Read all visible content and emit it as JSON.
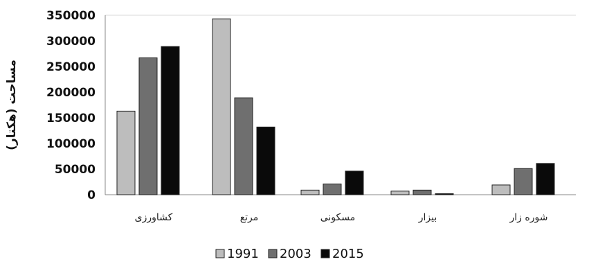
{
  "chart_data": {
    "type": "bar",
    "title": "",
    "xlabel": "",
    "ylabel": "مساحت (هکتار)",
    "ylim": [
      0,
      350000
    ],
    "yticks": [
      0,
      50000,
      100000,
      150000,
      200000,
      250000,
      300000,
      350000
    ],
    "categories": [
      "کشاورزی",
      "مرتع",
      "مسکونی",
      "بیزار",
      "شوره زار"
    ],
    "series": [
      {
        "name": "1991",
        "values": [
          163000,
          343000,
          9000,
          7000,
          19000
        ],
        "color": "#bdbdbd"
      },
      {
        "name": "2003",
        "values": [
          267000,
          189000,
          21000,
          9000,
          51000
        ],
        "color": "#6f6f6f"
      },
      {
        "name": "2015",
        "values": [
          289000,
          132000,
          46000,
          2000,
          61000
        ],
        "color": "#0a0a0a"
      }
    ],
    "grid": "top-line only",
    "legend": "bottom-center"
  }
}
